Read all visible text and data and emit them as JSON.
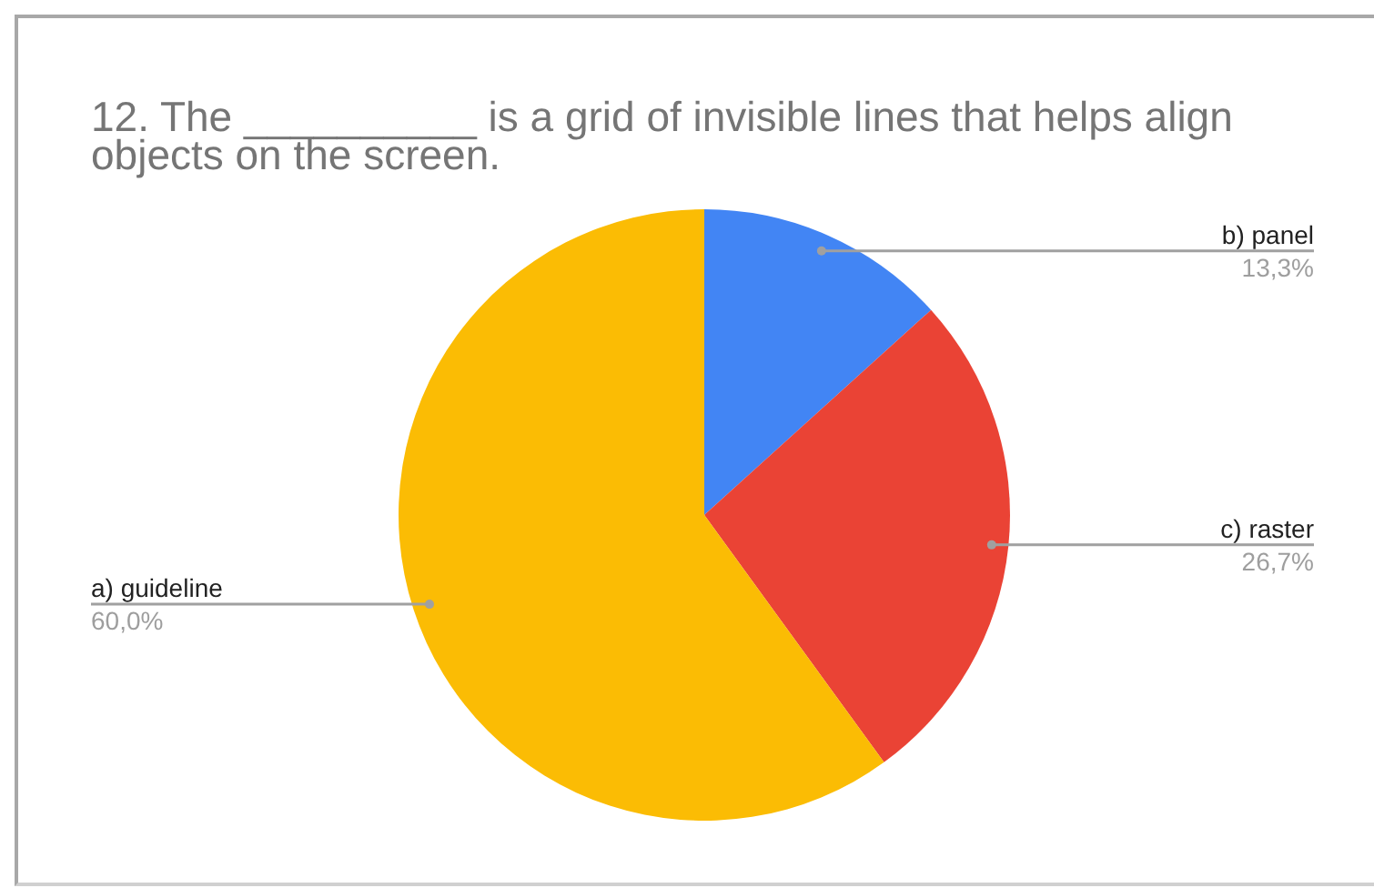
{
  "chart_data": {
    "type": "pie",
    "title": "12. The __________ is a grid of invisible lines that helps align objects on the screen.",
    "categories": [
      "b) panel",
      "c) raster",
      "a) guideline"
    ],
    "values": [
      13.3,
      26.7,
      60.0
    ],
    "colors": [
      "#4285f4",
      "#ea4335",
      "#fbbc04"
    ],
    "value_labels": [
      "13,3%",
      "26,7%",
      "60,0%"
    ]
  }
}
